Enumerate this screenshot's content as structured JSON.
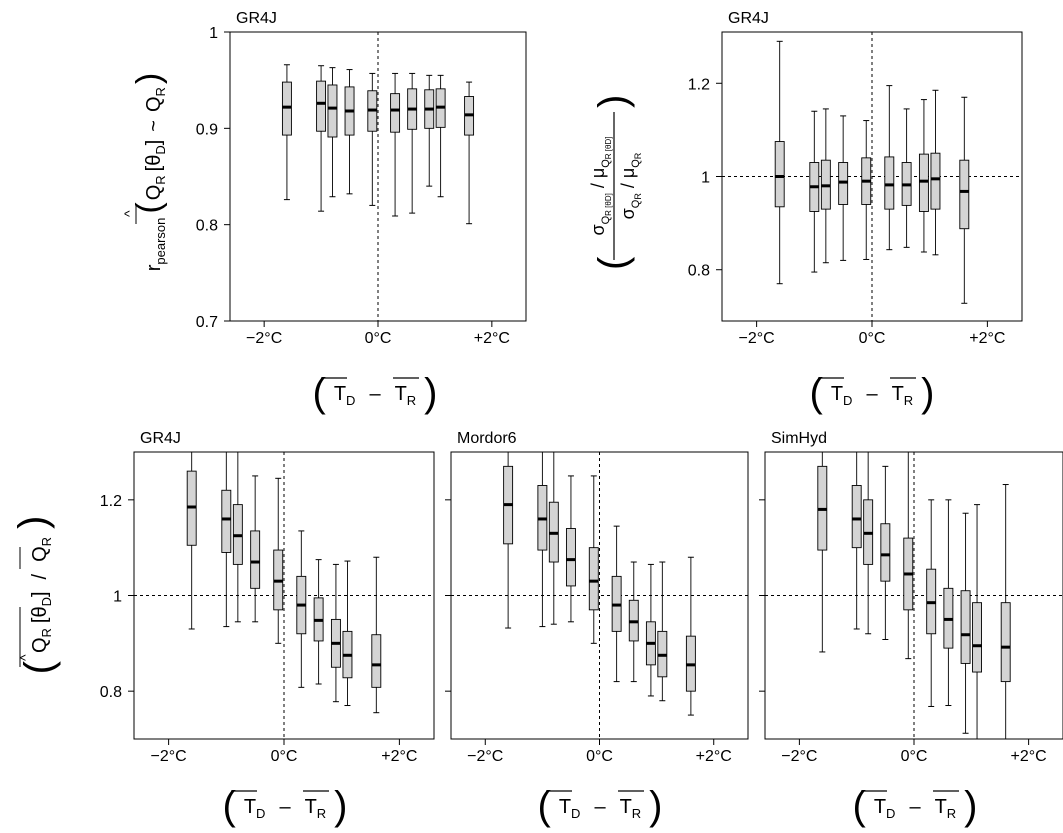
{
  "xlabel": {
    "t_d": "T",
    "t_d_sub": "D",
    "dash": "–",
    "t_r": "T",
    "t_r_sub": "R"
  },
  "ylabels": {
    "pearson": {
      "r": "r",
      "r_sub": "pearson",
      "q": "Q",
      "q_sub": "R",
      "theta": "[θ",
      "theta_sub": "D",
      "theta_close": "]",
      "tilde": "~",
      "q2": "Q",
      "q2_sub": "R"
    },
    "sigma": {
      "num_sigma": "σ",
      "num_q": "Q",
      "num_q_sub": "R [θD]",
      "slash1": "/",
      "num_mu": "μ",
      "num_mq": "Q",
      "num_mq_sub": "R [θD]",
      "den_sigma": "σ",
      "den_q": "Q",
      "den_q_sub": "R",
      "slash2": "/",
      "den_mu": "μ",
      "den_mq": "Q",
      "den_mq_sub": "R"
    },
    "mean": {
      "q": "Q",
      "q_sub": "R",
      "theta": "[θ",
      "theta_sub": "D",
      "theta_close": "]",
      "slash": "/",
      "q2": "Q",
      "q2_sub": "R"
    }
  },
  "chart_data": [
    {
      "type": "box",
      "title": "GR4J",
      "xticks": [
        -2,
        0,
        2
      ],
      "xtick_labels": [
        "−2°C",
        "0°C",
        "+2°C"
      ],
      "xlim": [
        -2.6,
        2.6
      ],
      "ylim": [
        0.7,
        1.0
      ],
      "yticks": [
        0.7,
        0.8,
        0.9,
        1.0
      ],
      "ytick_labels": [
        "0.7",
        "0.8",
        "0.9",
        "1"
      ],
      "ref_x": 0,
      "ref_y": null,
      "boxes": [
        {
          "x": -1.6,
          "min": 0.826,
          "q1": 0.893,
          "median": 0.922,
          "q3": 0.948,
          "max": 0.966
        },
        {
          "x": -1.0,
          "min": 0.814,
          "q1": 0.897,
          "median": 0.926,
          "q3": 0.949,
          "max": 0.965
        },
        {
          "x": -0.8,
          "min": 0.829,
          "q1": 0.891,
          "median": 0.921,
          "q3": 0.945,
          "max": 0.963
        },
        {
          "x": -0.5,
          "min": 0.832,
          "q1": 0.893,
          "median": 0.918,
          "q3": 0.943,
          "max": 0.961
        },
        {
          "x": -0.1,
          "min": 0.82,
          "q1": 0.897,
          "median": 0.919,
          "q3": 0.939,
          "max": 0.957
        },
        {
          "x": 0.3,
          "min": 0.809,
          "q1": 0.896,
          "median": 0.919,
          "q3": 0.936,
          "max": 0.957
        },
        {
          "x": 0.6,
          "min": 0.812,
          "q1": 0.899,
          "median": 0.92,
          "q3": 0.941,
          "max": 0.957
        },
        {
          "x": 0.9,
          "min": 0.84,
          "q1": 0.9,
          "median": 0.92,
          "q3": 0.94,
          "max": 0.955
        },
        {
          "x": 1.1,
          "min": 0.829,
          "q1": 0.901,
          "median": 0.922,
          "q3": 0.941,
          "max": 0.955
        },
        {
          "x": 1.6,
          "min": 0.801,
          "q1": 0.893,
          "median": 0.914,
          "q3": 0.933,
          "max": 0.948
        }
      ]
    },
    {
      "type": "box",
      "title": "GR4J",
      "xticks": [
        -2,
        0,
        2
      ],
      "xtick_labels": [
        "−2°C",
        "0°C",
        "+2°C"
      ],
      "xlim": [
        -2.6,
        2.6
      ],
      "ylim": [
        0.69,
        1.31
      ],
      "yticks": [
        0.8,
        1.0,
        1.2
      ],
      "ytick_labels": [
        "0.8",
        "1",
        "1.2"
      ],
      "ref_x": 0,
      "ref_y": 1,
      "boxes": [
        {
          "x": -1.6,
          "min": 0.77,
          "q1": 0.935,
          "median": 1.0,
          "q3": 1.075,
          "max": 1.29
        },
        {
          "x": -1.0,
          "min": 0.795,
          "q1": 0.925,
          "median": 0.978,
          "q3": 1.03,
          "max": 1.14
        },
        {
          "x": -0.8,
          "min": 0.815,
          "q1": 0.93,
          "median": 0.98,
          "q3": 1.035,
          "max": 1.145
        },
        {
          "x": -0.5,
          "min": 0.82,
          "q1": 0.94,
          "median": 0.988,
          "q3": 1.03,
          "max": 1.13
        },
        {
          "x": -0.1,
          "min": 0.822,
          "q1": 0.94,
          "median": 0.99,
          "q3": 1.04,
          "max": 1.12
        },
        {
          "x": 0.3,
          "min": 0.843,
          "q1": 0.93,
          "median": 0.982,
          "q3": 1.042,
          "max": 1.195
        },
        {
          "x": 0.6,
          "min": 0.848,
          "q1": 0.938,
          "median": 0.982,
          "q3": 1.03,
          "max": 1.145
        },
        {
          "x": 0.9,
          "min": 0.838,
          "q1": 0.925,
          "median": 0.99,
          "q3": 1.048,
          "max": 1.165
        },
        {
          "x": 1.1,
          "min": 0.832,
          "q1": 0.93,
          "median": 0.995,
          "q3": 1.05,
          "max": 1.185
        },
        {
          "x": 1.6,
          "min": 0.728,
          "q1": 0.888,
          "median": 0.968,
          "q3": 1.035,
          "max": 1.17
        }
      ]
    },
    {
      "type": "box",
      "title": "GR4J",
      "xticks": [
        -2,
        0,
        2
      ],
      "xtick_labels": [
        "−2°C",
        "0°C",
        "+2°C"
      ],
      "xlim": [
        -2.6,
        2.6
      ],
      "ylim": [
        0.7,
        1.3
      ],
      "yticks": [
        0.8,
        1.0,
        1.2
      ],
      "ytick_labels": [
        "0.8",
        "1",
        "1.2"
      ],
      "ref_x": 0,
      "ref_y": 1,
      "boxes": [
        {
          "x": -1.6,
          "min": 0.93,
          "q1": 1.105,
          "median": 1.185,
          "q3": 1.26,
          "max": 1.3
        },
        {
          "x": -1.0,
          "min": 0.935,
          "q1": 1.09,
          "median": 1.16,
          "q3": 1.22,
          "max": 1.3
        },
        {
          "x": -0.8,
          "min": 0.945,
          "q1": 1.065,
          "median": 1.125,
          "q3": 1.19,
          "max": 1.3
        },
        {
          "x": -0.5,
          "min": 0.945,
          "q1": 1.015,
          "median": 1.07,
          "q3": 1.135,
          "max": 1.25
        },
        {
          "x": -0.1,
          "min": 0.9,
          "q1": 0.97,
          "median": 1.03,
          "q3": 1.095,
          "max": 1.245
        },
        {
          "x": 0.3,
          "min": 0.808,
          "q1": 0.92,
          "median": 0.98,
          "q3": 1.04,
          "max": 1.135
        },
        {
          "x": 0.6,
          "min": 0.815,
          "q1": 0.905,
          "median": 0.948,
          "q3": 0.995,
          "max": 1.075
        },
        {
          "x": 0.9,
          "min": 0.778,
          "q1": 0.85,
          "median": 0.9,
          "q3": 0.95,
          "max": 1.065
        },
        {
          "x": 1.1,
          "min": 0.77,
          "q1": 0.828,
          "median": 0.875,
          "q3": 0.925,
          "max": 1.072
        },
        {
          "x": 1.6,
          "min": 0.755,
          "q1": 0.808,
          "median": 0.855,
          "q3": 0.918,
          "max": 1.08
        }
      ]
    },
    {
      "type": "box",
      "title": "Mordor6",
      "xticks": [
        -2,
        0,
        2
      ],
      "xtick_labels": [
        "−2°C",
        "0°C",
        "+2°C"
      ],
      "xlim": [
        -2.6,
        2.6
      ],
      "ylim": [
        0.7,
        1.3
      ],
      "yticks": [
        0.8,
        1.0,
        1.2
      ],
      "ytick_labels": [
        "",
        "",
        ""
      ],
      "ref_x": 0,
      "ref_y": 1,
      "boxes": [
        {
          "x": -1.6,
          "min": 0.932,
          "q1": 1.108,
          "median": 1.19,
          "q3": 1.27,
          "max": 1.3
        },
        {
          "x": -1.0,
          "min": 0.935,
          "q1": 1.095,
          "median": 1.16,
          "q3": 1.23,
          "max": 1.3
        },
        {
          "x": -0.8,
          "min": 0.94,
          "q1": 1.07,
          "median": 1.13,
          "q3": 1.195,
          "max": 1.3
        },
        {
          "x": -0.5,
          "min": 0.945,
          "q1": 1.02,
          "median": 1.075,
          "q3": 1.14,
          "max": 1.25
        },
        {
          "x": -0.1,
          "min": 0.9,
          "q1": 0.97,
          "median": 1.03,
          "q3": 1.1,
          "max": 1.25
        },
        {
          "x": 0.3,
          "min": 0.82,
          "q1": 0.925,
          "median": 0.98,
          "q3": 1.04,
          "max": 1.145
        },
        {
          "x": 0.6,
          "min": 0.82,
          "q1": 0.905,
          "median": 0.945,
          "q3": 0.99,
          "max": 1.07
        },
        {
          "x": 0.9,
          "min": 0.79,
          "q1": 0.855,
          "median": 0.9,
          "q3": 0.945,
          "max": 1.065
        },
        {
          "x": 1.1,
          "min": 0.78,
          "q1": 0.83,
          "median": 0.875,
          "q3": 0.925,
          "max": 1.07
        },
        {
          "x": 1.6,
          "min": 0.75,
          "q1": 0.8,
          "median": 0.855,
          "q3": 0.915,
          "max": 1.08
        }
      ]
    },
    {
      "type": "box",
      "title": "SimHyd",
      "xticks": [
        -2,
        0,
        2
      ],
      "xtick_labels": [
        "−2°C",
        "0°C",
        "+2°C"
      ],
      "xlim": [
        -2.6,
        2.6
      ],
      "ylim": [
        0.7,
        1.3
      ],
      "yticks": [
        0.8,
        1.0,
        1.2
      ],
      "ytick_labels": [
        "",
        "",
        ""
      ],
      "ref_x": 0,
      "ref_y": 1,
      "boxes": [
        {
          "x": -1.6,
          "min": 0.882,
          "q1": 1.095,
          "median": 1.18,
          "q3": 1.27,
          "max": 1.3
        },
        {
          "x": -1.0,
          "min": 0.93,
          "q1": 1.1,
          "median": 1.16,
          "q3": 1.23,
          "max": 1.3
        },
        {
          "x": -0.8,
          "min": 0.92,
          "q1": 1.065,
          "median": 1.13,
          "q3": 1.2,
          "max": 1.3
        },
        {
          "x": -0.5,
          "min": 0.908,
          "q1": 1.03,
          "median": 1.085,
          "q3": 1.15,
          "max": 1.27
        },
        {
          "x": -0.1,
          "min": 0.868,
          "q1": 0.97,
          "median": 1.045,
          "q3": 1.12,
          "max": 1.3
        },
        {
          "x": 0.3,
          "min": 0.768,
          "q1": 0.92,
          "median": 0.985,
          "q3": 1.055,
          "max": 1.2
        },
        {
          "x": 0.6,
          "min": 0.77,
          "q1": 0.89,
          "median": 0.95,
          "q3": 1.015,
          "max": 1.2
        },
        {
          "x": 0.9,
          "min": 0.712,
          "q1": 0.858,
          "median": 0.918,
          "q3": 1.01,
          "max": 1.172
        },
        {
          "x": 1.1,
          "min": 0.7,
          "q1": 0.84,
          "median": 0.895,
          "q3": 0.985,
          "max": 1.19
        },
        {
          "x": 1.6,
          "min": 0.7,
          "q1": 0.82,
          "median": 0.892,
          "q3": 0.985,
          "max": 1.232
        }
      ]
    }
  ]
}
